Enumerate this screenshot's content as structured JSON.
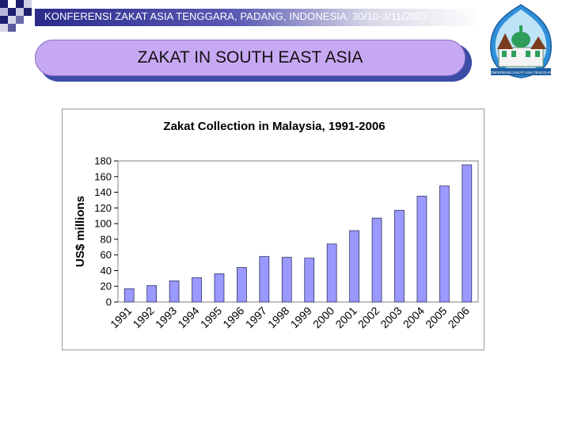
{
  "header": {
    "text": "KONFERENSI ZAKAT ASIA TENGGARA, PADANG, INDONESIA. 30/10-3/11/2007"
  },
  "slide": {
    "title": "ZAKAT IN SOUTH EAST ASIA"
  },
  "logo": {
    "icon": "mosque-logo-icon",
    "caption": "KONFERENSI ZAKAT ASIA TENGGARA"
  },
  "colors": {
    "header_dark": "#2b2b8c",
    "pill_fill": "#c7a8f2",
    "pill_shadow": "#3b4da5",
    "bar_fill": "#9999ff",
    "bar_stroke": "#333366",
    "plot_bg": "#ffffff"
  },
  "chart_data": {
    "type": "bar",
    "title": "Zakat Collection in Malaysia, 1991-2006",
    "xlabel": "",
    "ylabel": "US$ millions",
    "ylim": [
      0,
      180
    ],
    "yticks": [
      0,
      20,
      40,
      60,
      80,
      100,
      120,
      140,
      160,
      180
    ],
    "grid": false,
    "legend": "none",
    "categories": [
      "1991",
      "1992",
      "1993",
      "1994",
      "1995",
      "1996",
      "1997",
      "1998",
      "1999",
      "2000",
      "2001",
      "2002",
      "2003",
      "2004",
      "2005",
      "2006"
    ],
    "values": [
      17,
      21,
      27,
      31,
      36,
      44,
      58,
      57,
      56,
      74,
      91,
      107,
      117,
      135,
      148,
      175
    ]
  }
}
